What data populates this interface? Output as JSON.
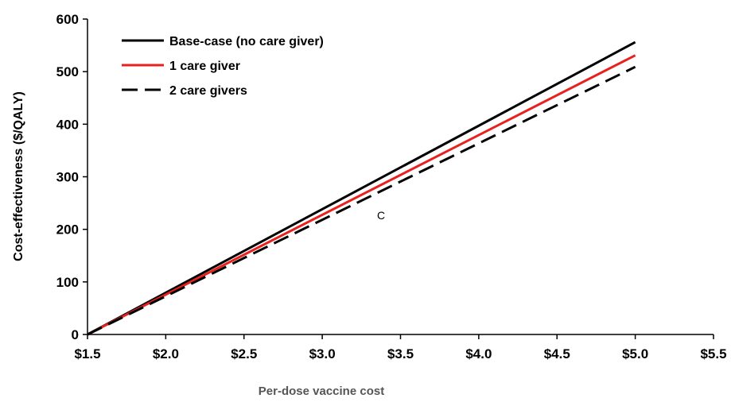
{
  "chart_data": {
    "type": "line",
    "title": "",
    "xlabel": "Per-dose vaccine cost",
    "ylabel": "Cost-effectiveness ($/QALY)",
    "xlim": [
      1.5,
      5.5
    ],
    "ylim": [
      0,
      600
    ],
    "x_ticks": [
      1.5,
      2.0,
      2.5,
      3.0,
      3.5,
      4.0,
      4.5,
      5.0,
      5.5
    ],
    "x_tick_labels": [
      "$1.5",
      "$2.0",
      "$2.5",
      "$3.0",
      "$3.5",
      "$4.0",
      "$4.5",
      "$5.0",
      "$5.5"
    ],
    "y_ticks": [
      0,
      100,
      200,
      300,
      400,
      500,
      600
    ],
    "y_tick_labels": [
      "0",
      "100",
      "200",
      "300",
      "400",
      "500",
      "600"
    ],
    "grid": false,
    "legend_position": "top-left",
    "annotation": "C",
    "series": [
      {
        "name": "Base-case (no care giver)",
        "color": "#000000",
        "dash": "solid",
        "x": [
          1.5,
          5.0
        ],
        "y": [
          0,
          556
        ]
      },
      {
        "name": "1 care giver",
        "color": "#e8201e",
        "dash": "solid",
        "x": [
          1.5,
          5.0
        ],
        "y": [
          0,
          531
        ]
      },
      {
        "name": "2 care givers",
        "color": "#000000",
        "dash": "dashed",
        "x": [
          1.5,
          5.0
        ],
        "y": [
          0,
          509
        ]
      }
    ]
  }
}
